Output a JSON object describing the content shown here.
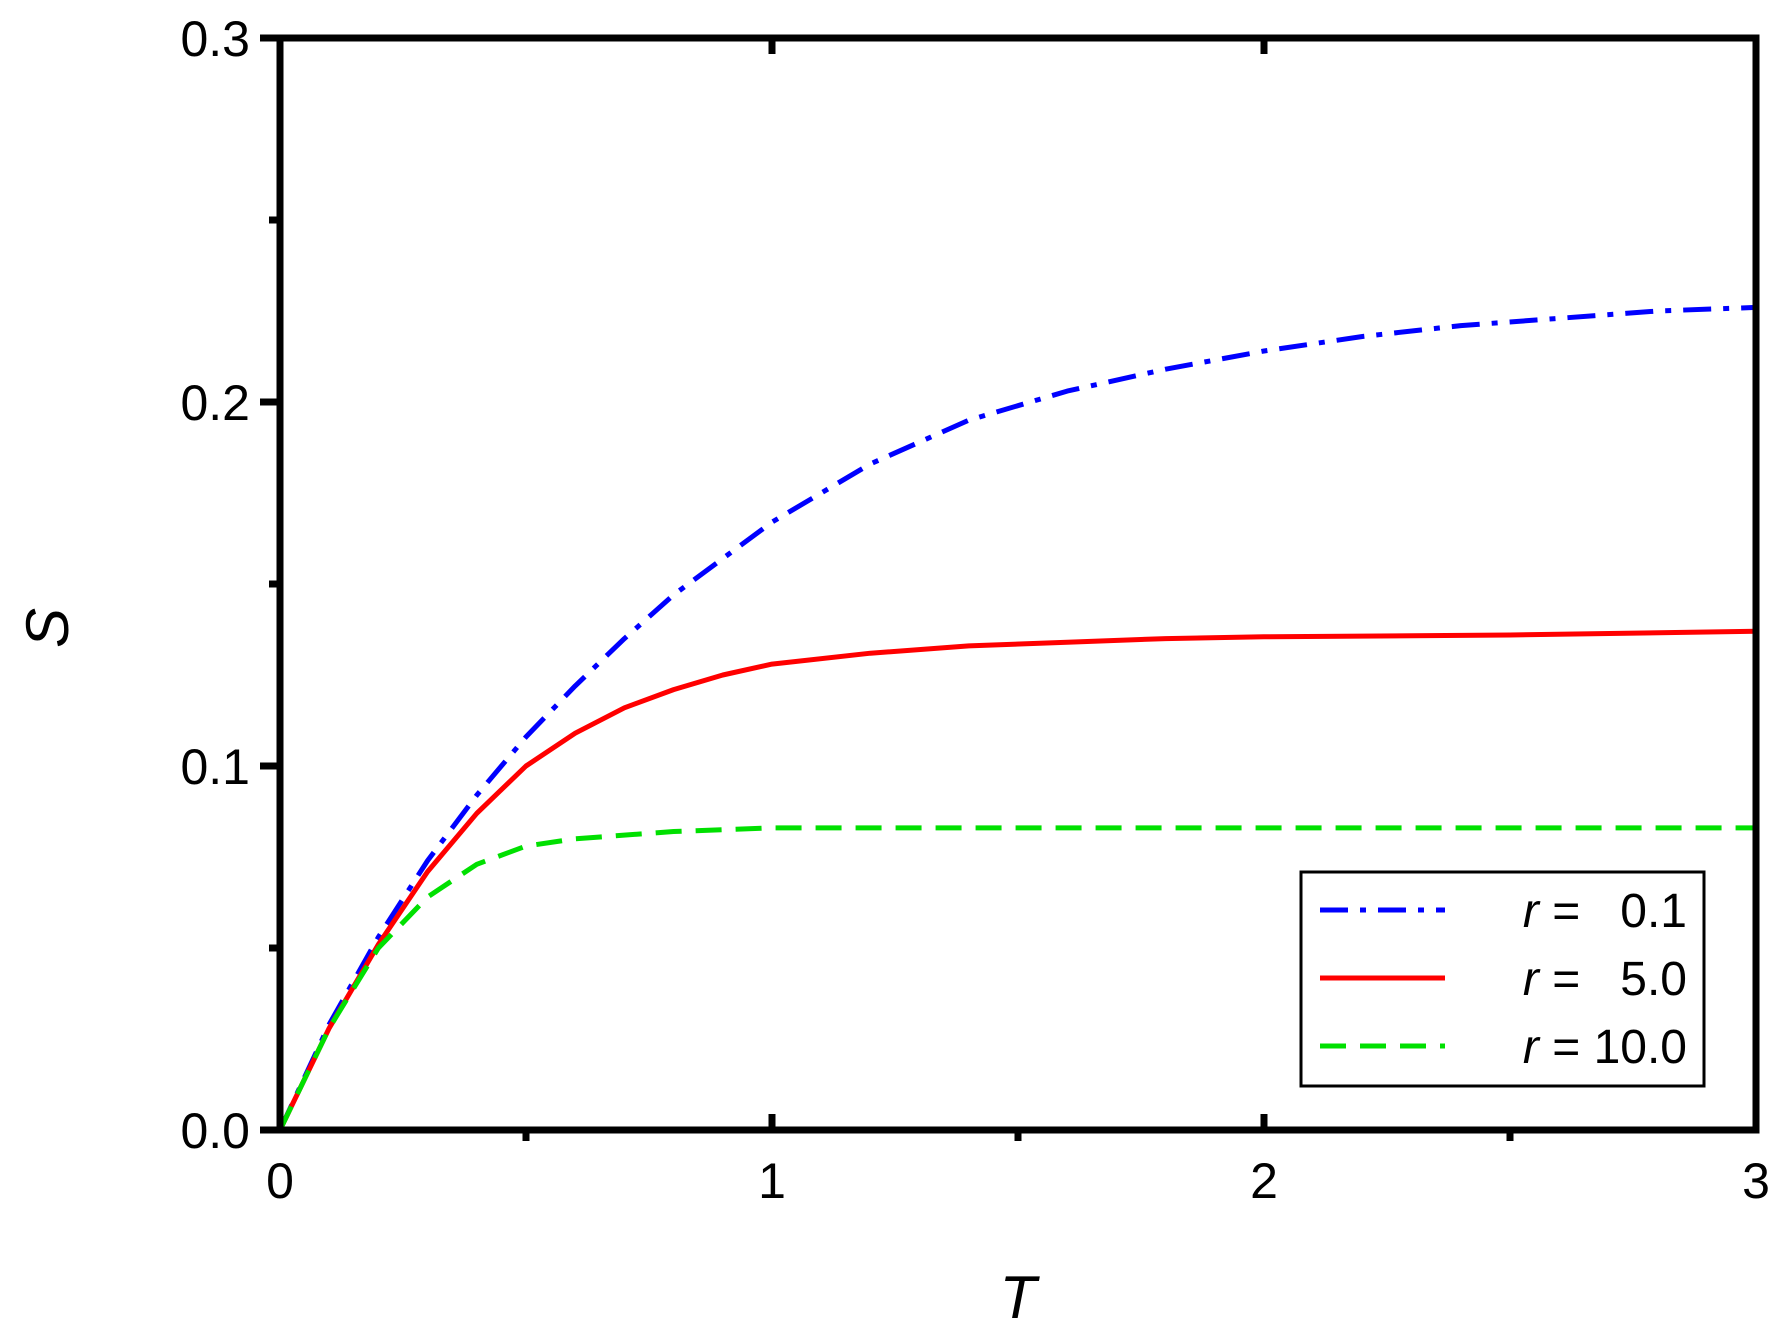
{
  "chart_data": {
    "type": "line",
    "xlabel": "T",
    "ylabel": "S",
    "xlim": [
      0,
      3
    ],
    "ylim": [
      0,
      0.3
    ],
    "x_ticks": [
      0,
      1,
      2,
      3
    ],
    "x_tick_labels": [
      "0",
      "1",
      "2",
      "3"
    ],
    "x_minor_ticks": [
      0.5,
      1.5,
      2.5
    ],
    "y_ticks": [
      0,
      0.1,
      0.2,
      0.3
    ],
    "y_tick_labels": [
      "0.0",
      "0.1",
      "0.2",
      "0.3"
    ],
    "y_minor_ticks": [
      0.05,
      0.15,
      0.25
    ],
    "grid": false,
    "legend_position": "bottom-right",
    "series": [
      {
        "name": "r =   0.1",
        "legend_prefix": "r",
        "legend_suffix": " =   0.1",
        "color": "#0000ff",
        "style": "dash-dot",
        "x": [
          0,
          0.1,
          0.2,
          0.3,
          0.4,
          0.5,
          0.6,
          0.7,
          0.8,
          0.9,
          1.0,
          1.2,
          1.4,
          1.6,
          1.8,
          2.0,
          2.2,
          2.4,
          2.6,
          2.8,
          3.0
        ],
        "y": [
          0,
          0.029,
          0.053,
          0.074,
          0.092,
          0.108,
          0.122,
          0.135,
          0.147,
          0.157,
          0.167,
          0.183,
          0.195,
          0.203,
          0.209,
          0.214,
          0.218,
          0.221,
          0.223,
          0.225,
          0.226
        ]
      },
      {
        "name": "r =   5.0",
        "legend_prefix": "r",
        "legend_suffix": " =   5.0",
        "color": "#ff0000",
        "style": "solid",
        "x": [
          0,
          0.1,
          0.2,
          0.3,
          0.4,
          0.5,
          0.6,
          0.7,
          0.8,
          0.9,
          1.0,
          1.2,
          1.4,
          1.6,
          1.8,
          2.0,
          2.5,
          3.0
        ],
        "y": [
          0,
          0.028,
          0.051,
          0.071,
          0.087,
          0.1,
          0.109,
          0.116,
          0.121,
          0.125,
          0.128,
          0.131,
          0.133,
          0.134,
          0.135,
          0.1355,
          0.136,
          0.137
        ]
      },
      {
        "name": "r = 10.0",
        "legend_prefix": "r",
        "legend_suffix": " = 10.0",
        "color": "#00e000",
        "style": "dashed",
        "x": [
          0,
          0.1,
          0.2,
          0.3,
          0.4,
          0.5,
          0.6,
          0.8,
          1.0,
          1.5,
          2.0,
          2.5,
          3.0
        ],
        "y": [
          0,
          0.028,
          0.05,
          0.064,
          0.073,
          0.078,
          0.08,
          0.082,
          0.083,
          0.083,
          0.083,
          0.083,
          0.083
        ]
      }
    ]
  }
}
